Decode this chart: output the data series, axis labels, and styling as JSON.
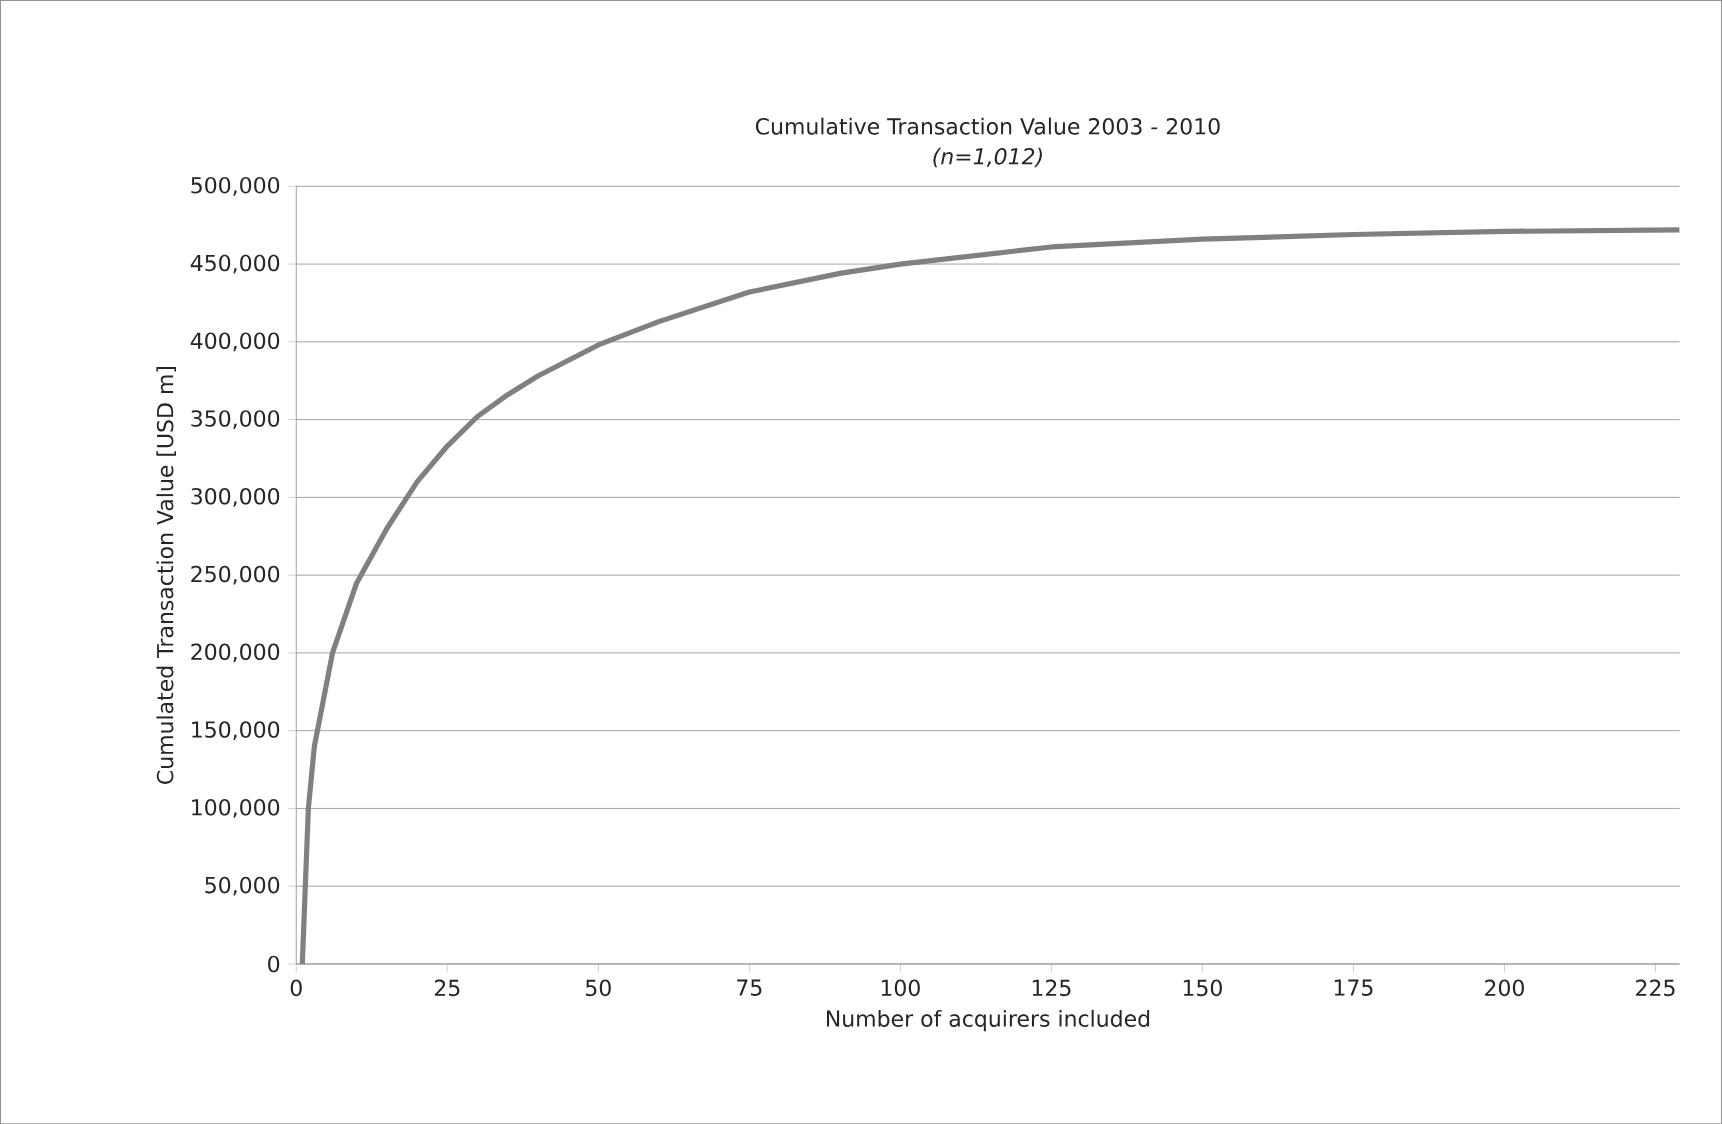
{
  "chart_data": {
    "type": "line",
    "title": "Cumulative Transaction Value 2003 - 2010",
    "subtitle": "*(n=1,012)*",
    "xlabel": "Number of acquirers included",
    "ylabel": "Cumulated Transaction Value [USD m]",
    "x": [
      1,
      2,
      3,
      6,
      10,
      15,
      20,
      25,
      30,
      35,
      40,
      50,
      60,
      75,
      90,
      100,
      125,
      150,
      175,
      200,
      229
    ],
    "series": [
      {
        "color": "#808080",
        "values": [
          0,
          100000,
          140000,
          200000,
          245000,
          280000,
          310000,
          333000,
          352000,
          366000,
          378000,
          398000,
          413000,
          432000,
          444000,
          450000,
          461000,
          466000,
          469000,
          471000,
          472000
        ]
      }
    ],
    "xlim": [
      0,
      229
    ],
    "xticks": [
      0,
      25,
      50,
      75,
      100,
      125,
      150,
      175,
      200,
      225
    ],
    "ylim": [
      0,
      500000
    ],
    "yticks": [
      {
        "value": 0,
        "label": "0"
      },
      {
        "value": 50000,
        "label": "50,000"
      },
      {
        "value": 100000,
        "label": "100,000"
      },
      {
        "value": 150000,
        "label": "150,000"
      },
      {
        "value": 200000,
        "label": "200,000"
      },
      {
        "value": 250000,
        "label": "250,000"
      },
      {
        "value": 300000,
        "label": "300,000"
      },
      {
        "value": 350000,
        "label": "350,000"
      },
      {
        "value": 400000,
        "label": "400,000"
      },
      {
        "value": 450000,
        "label": "450,000"
      },
      {
        "value": 500000,
        "label": "500,000"
      }
    ],
    "grid": "y",
    "marker": "none",
    "line_style": "solid"
  }
}
